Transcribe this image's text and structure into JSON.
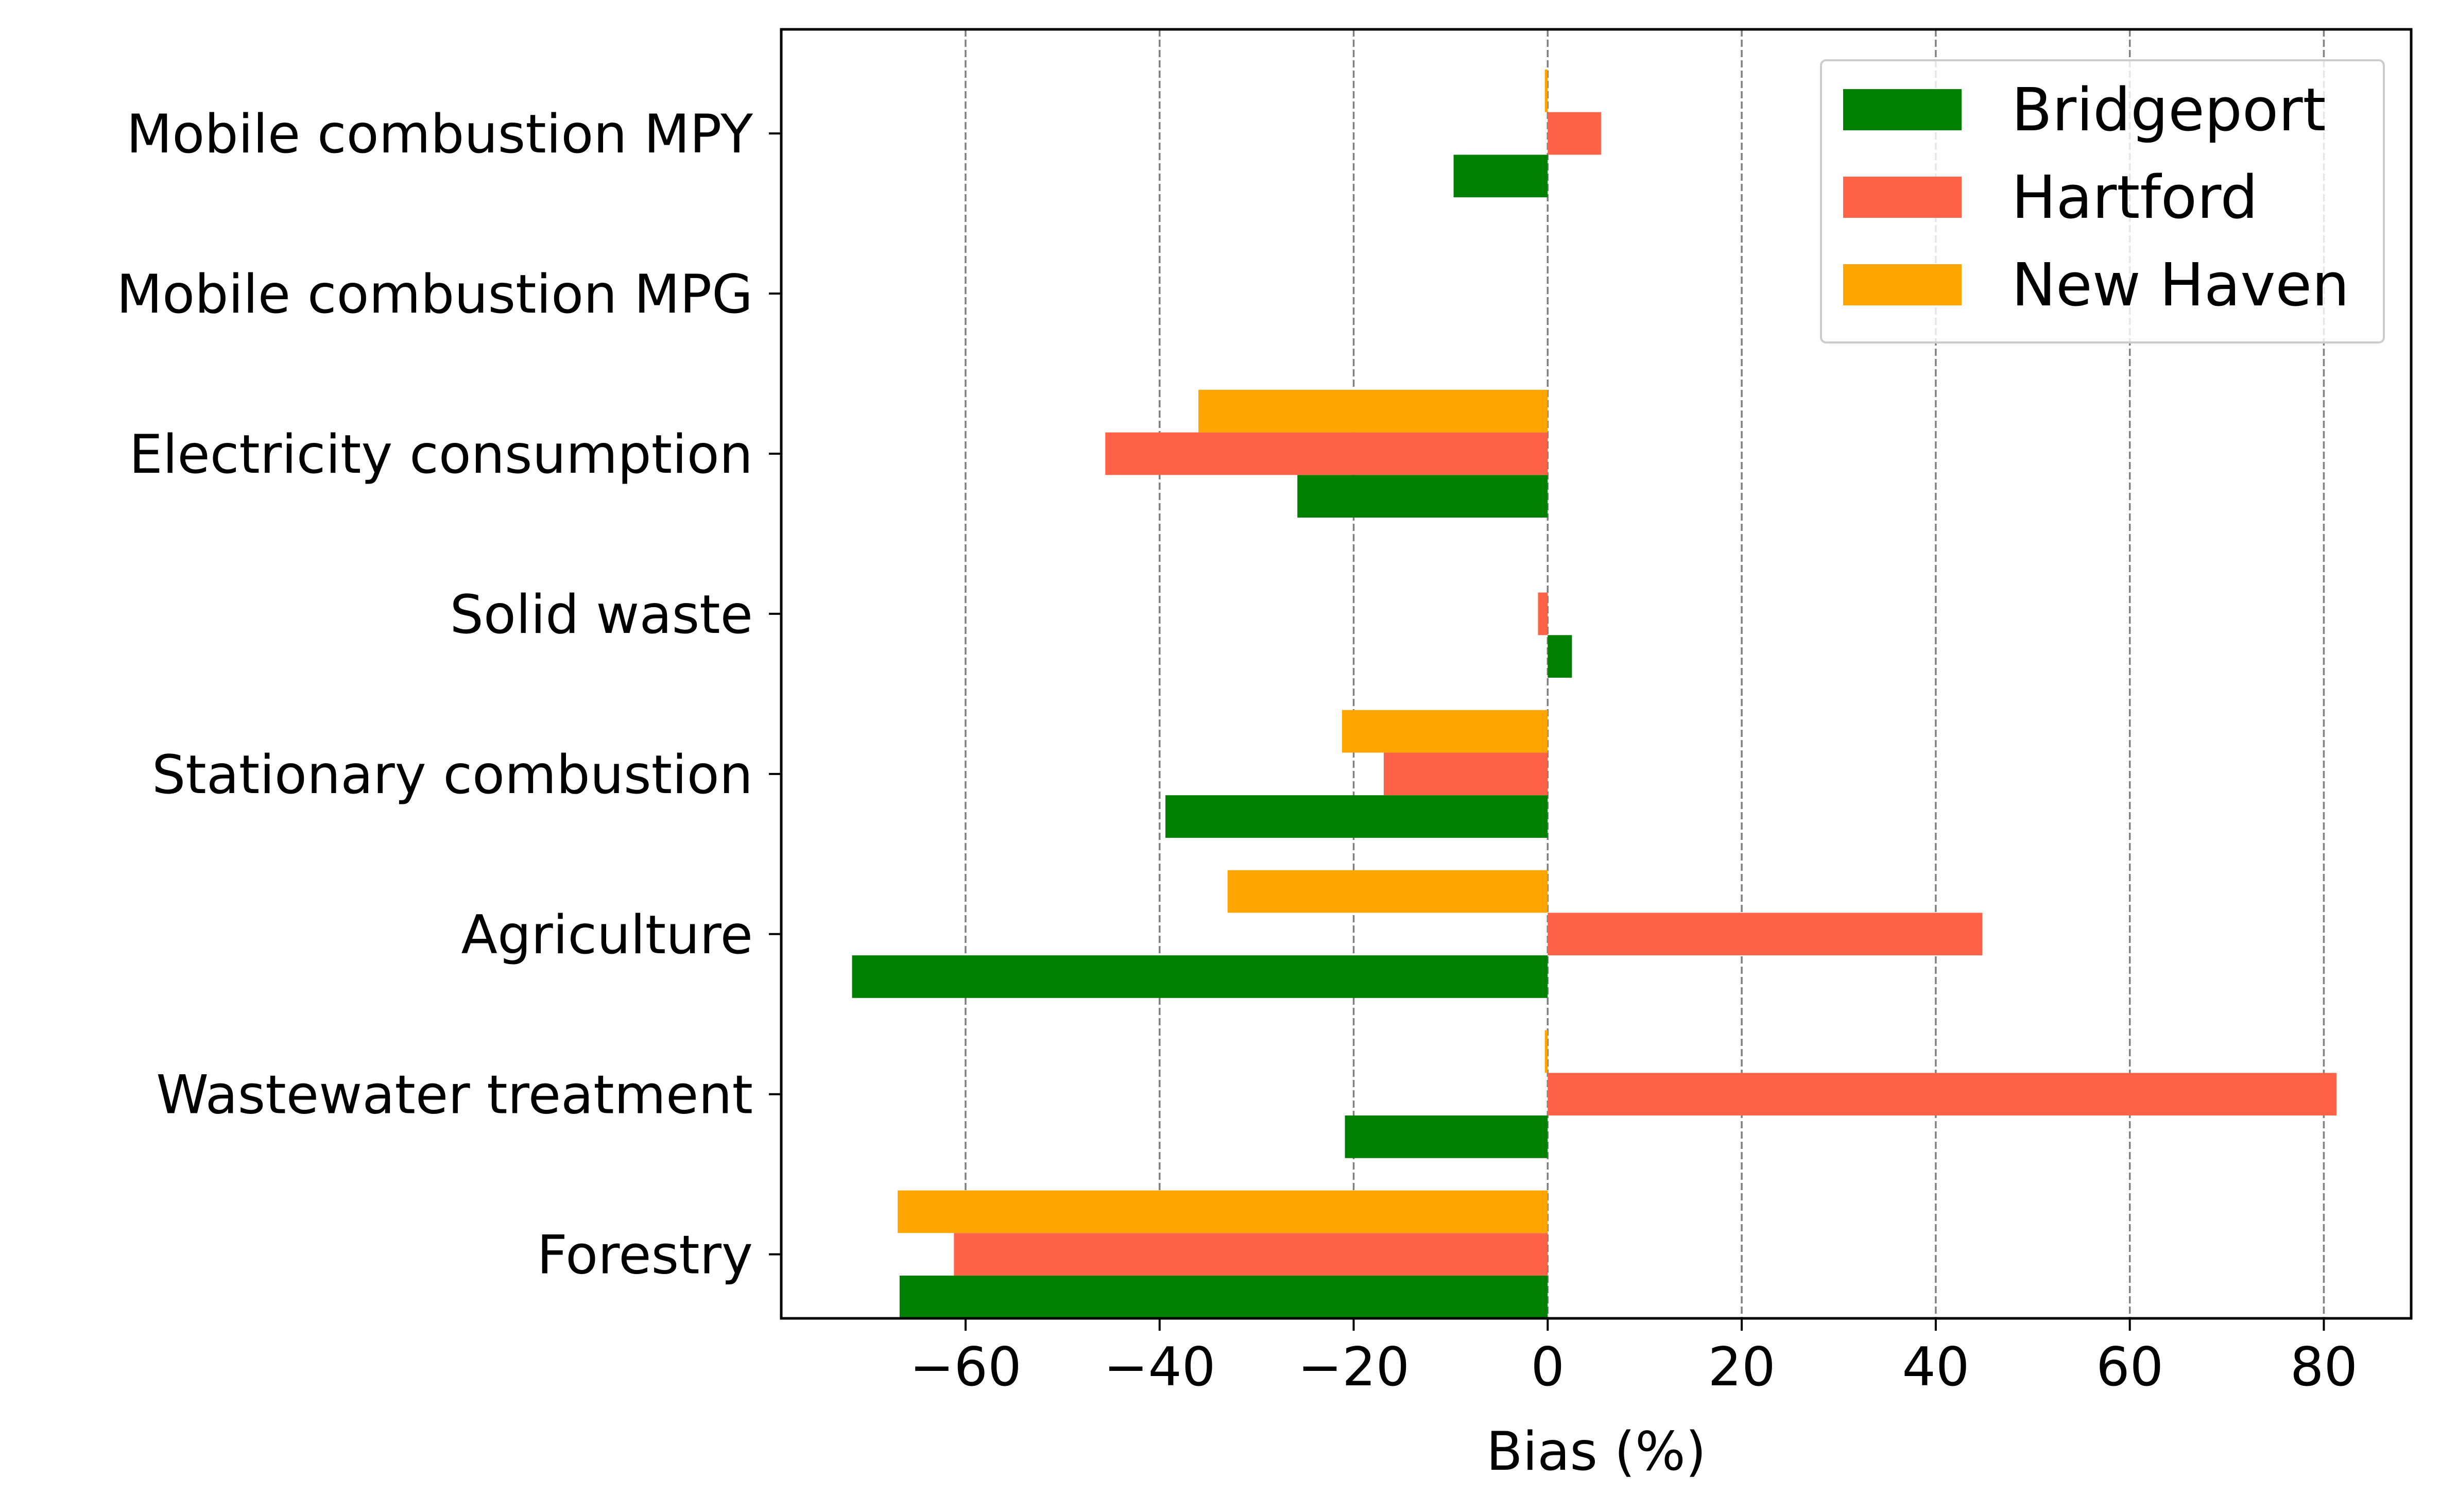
{
  "chart_data": {
    "type": "bar",
    "orientation": "horizontal",
    "title": "",
    "xlabel": "Bias (%)",
    "ylabel": "",
    "xlim": [
      -79,
      89
    ],
    "xticks": [
      -60,
      -40,
      -20,
      0,
      20,
      40,
      60,
      80
    ],
    "xtick_labels": [
      "−60",
      "−40",
      "−20",
      "0",
      "20",
      "40",
      "60",
      "80"
    ],
    "grid": {
      "x": true,
      "y": false,
      "style": "dashed"
    },
    "legend_position": "top-right",
    "categories": [
      "Mobile combustion MPY",
      "Mobile combustion MPG",
      "Electricity consumption",
      "Solid waste",
      "Stationary combustion",
      "Agriculture",
      "Wastewater treatment",
      "Forestry"
    ],
    "series": [
      {
        "name": "Bridgeport",
        "color": "#008000",
        "values": [
          -9.7,
          null,
          -25.8,
          2.5,
          -39.4,
          -71.7,
          -20.9,
          -66.8
        ]
      },
      {
        "name": "Hartford",
        "color": "#ff6347",
        "values": [
          5.5,
          null,
          -45.6,
          -1.0,
          -16.9,
          44.8,
          81.3,
          -61.2
        ]
      },
      {
        "name": "New Haven",
        "color": "#ffa500",
        "values": [
          -0.3,
          null,
          -36.0,
          null,
          -21.2,
          -33.0,
          -0.3,
          -67.0
        ]
      }
    ]
  }
}
